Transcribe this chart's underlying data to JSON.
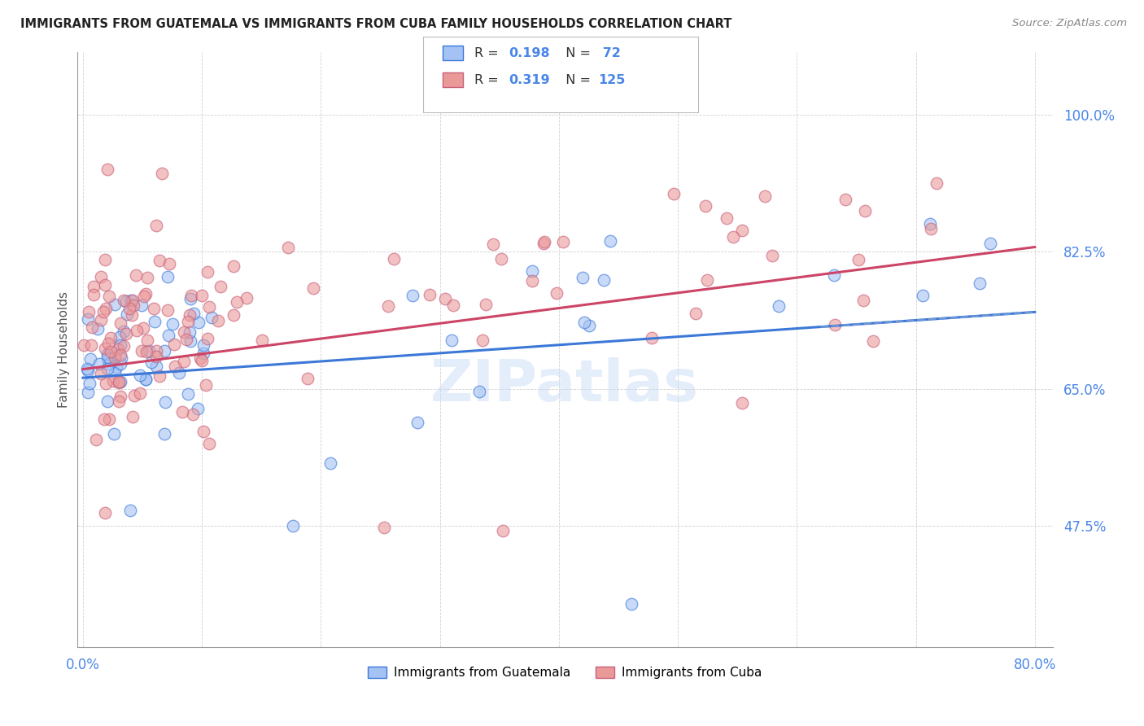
{
  "title": "IMMIGRANTS FROM GUATEMALA VS IMMIGRANTS FROM CUBA FAMILY HOUSEHOLDS CORRELATION CHART",
  "source": "Source: ZipAtlas.com",
  "ylabel": "Family Households",
  "xlim": [
    0.0,
    0.8
  ],
  "ylim": [
    0.32,
    1.08
  ],
  "yticks": [
    0.475,
    0.65,
    0.825,
    1.0
  ],
  "ytick_labels": [
    "47.5%",
    "65.0%",
    "82.5%",
    "100.0%"
  ],
  "xticks": [
    0.0,
    0.1,
    0.2,
    0.3,
    0.4,
    0.5,
    0.6,
    0.7,
    0.8
  ],
  "xtick_labels": [
    "0.0%",
    "",
    "",
    "",
    "",
    "",
    "",
    "",
    "80.0%"
  ],
  "color_guatemala": "#a4c2f4",
  "color_cuba": "#ea9999",
  "trend_color_guatemala": "#3c78d8",
  "trend_color_cuba": "#cc4466",
  "watermark": "ZIPatlas",
  "background_color": "#ffffff",
  "title_color": "#222222",
  "tick_label_color": "#4a86e8",
  "grid_color": "#cccccc",
  "guat_seed": 7,
  "cuba_seed": 13
}
